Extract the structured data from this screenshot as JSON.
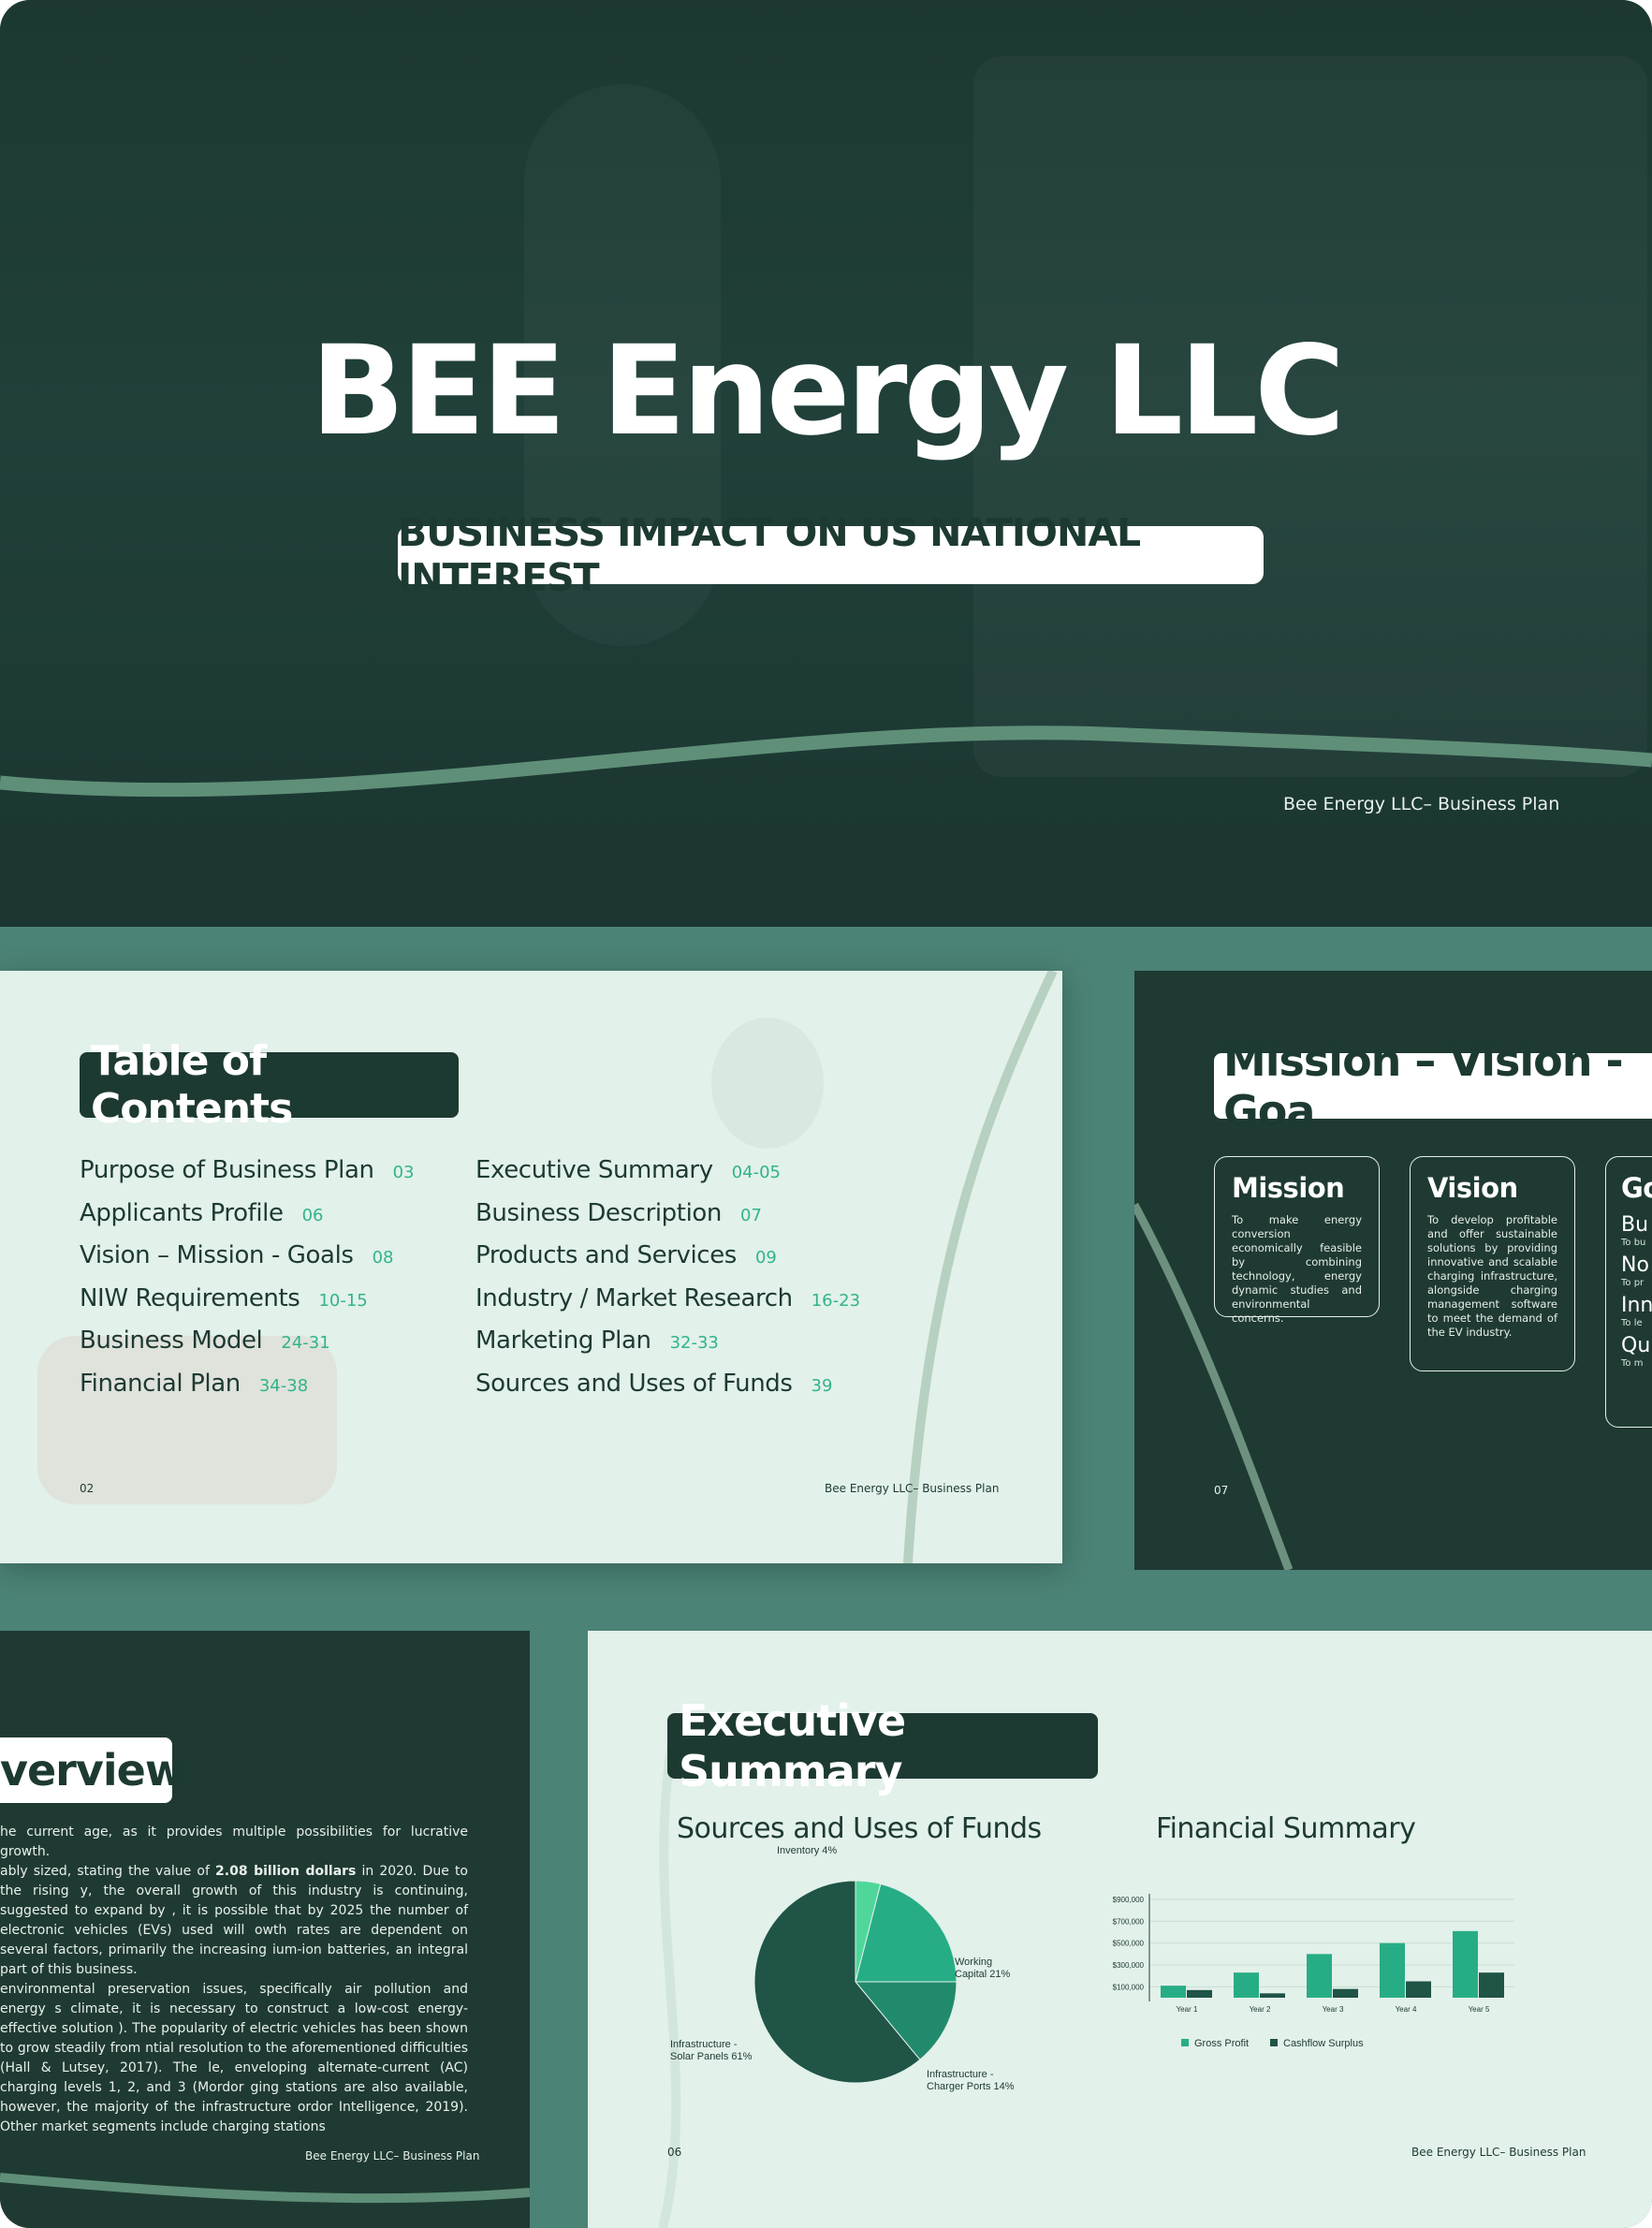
{
  "hero": {
    "title": "BEE Energy LLC",
    "subtitle": "BUSINESS IMPACT ON US NATIONAL INTEREST",
    "footer": "Bee Energy LLC– Business Plan"
  },
  "toc": {
    "title": "Table of Contents",
    "left": [
      {
        "label": "Purpose of Business Plan",
        "page": "03"
      },
      {
        "label": "Applicants Profile",
        "page": "06"
      },
      {
        "label": "Vision – Mission - Goals",
        "page": "08"
      },
      {
        "label": "NIW Requirements",
        "page": "10-15"
      },
      {
        "label": "Business Model",
        "page": "24-31"
      },
      {
        "label": "Financial Plan",
        "page": "34-38"
      }
    ],
    "right": [
      {
        "label": "Executive Summary",
        "page": "04-05"
      },
      {
        "label": "Business Description",
        "page": "07"
      },
      {
        "label": "Products and Services",
        "page": "09"
      },
      {
        "label": "Industry / Market Research",
        "page": "16-23"
      },
      {
        "label": "Marketing Plan",
        "page": "32-33"
      },
      {
        "label": "Sources and Uses of Funds",
        "page": "39"
      }
    ],
    "page_number": "02",
    "footer": "Bee Energy LLC– Business Plan"
  },
  "mission": {
    "title": "Mission – Vision - Goa",
    "page_number": "07",
    "cards": [
      {
        "title": "Mission",
        "body": "To make energy conversion economically feasible by combining technology, energy dynamic studies and environmental concerns."
      },
      {
        "title": "Vision",
        "body": "To develop profitable and offer sustainable solutions by providing innovative and scalable charging infrastructure, alongside charging management software to meet the demand of the EV industry."
      }
    ],
    "goals": {
      "title": "Go",
      "items": [
        {
          "h": "Bu",
          "s": "To bu"
        },
        {
          "h": "No",
          "s": "To pr"
        },
        {
          "h": "Inn",
          "s": "To le"
        },
        {
          "h": "Qu",
          "s": "To m"
        }
      ]
    }
  },
  "overview": {
    "title": "verview",
    "lead": "he current age, as it provides multiple possibilities for lucrative growth.",
    "p1_a": "ably sized, stating the value of ",
    "p1_bold": "2.08 billion dollars",
    "p1_b": " in 2020. Due to the rising y, the overall growth of this industry is continuing, suggested to expand by , it is possible that by 2025 the number of electronic vehicles (EVs) used will owth rates are dependent on several factors, primarily the increasing ium-ion batteries, an integral part of this business.",
    "p2": "environmental preservation issues, specifically air pollution and energy s climate, it is necessary to construct a low-cost energy-effective solution ). The popularity of electric vehicles has been shown to grow steadily from ntial resolution to the aforementioned difficulties (Hall & Lutsey, 2017). The le, enveloping alternate-current (AC) charging levels 1, 2, and 3 (Mordor ging stations are also available, however, the majority of the infrastructure ordor Intelligence, 2019). Other market segments include charging stations",
    "footer": "Bee Energy LLC– Business Plan"
  },
  "exec": {
    "title": "Executive Summary",
    "pie_title": "Sources and Uses of Funds",
    "bar_title": "Financial Summary",
    "page_number": "06",
    "footer": "Bee Energy LLC– Business Plan"
  },
  "chart_data": [
    {
      "type": "pie",
      "title": "Sources and Uses of Funds",
      "labels": [
        "Inventory 4%",
        "Working Capital 21%",
        "Infrastructure - Charger Ports 14%",
        "Infrastructure - Solar Panels 61%"
      ],
      "values": [
        4,
        21,
        14,
        61
      ],
      "colors": [
        "#4fd79b",
        "#27ad85",
        "#228a6c",
        "#1f5446"
      ]
    },
    {
      "type": "bar",
      "title": "Financial Summary",
      "categories": [
        "Year 1",
        "Year 2",
        "Year 3",
        "Year 4",
        "Year 5"
      ],
      "series": [
        {
          "name": "Gross Profit",
          "values": [
            110000,
            230000,
            400000,
            500000,
            610000
          ],
          "color": "#27ad85"
        },
        {
          "name": "Cashflow Surplus",
          "values": [
            70000,
            40000,
            80000,
            150000,
            230000
          ],
          "color": "#1f5446"
        }
      ],
      "yticks": [
        "$100,000",
        "$300,000",
        "$500,000",
        "$700,000",
        "$900,000"
      ],
      "ylim": [
        0,
        900000
      ],
      "grid": true,
      "legend": "bottom"
    }
  ]
}
